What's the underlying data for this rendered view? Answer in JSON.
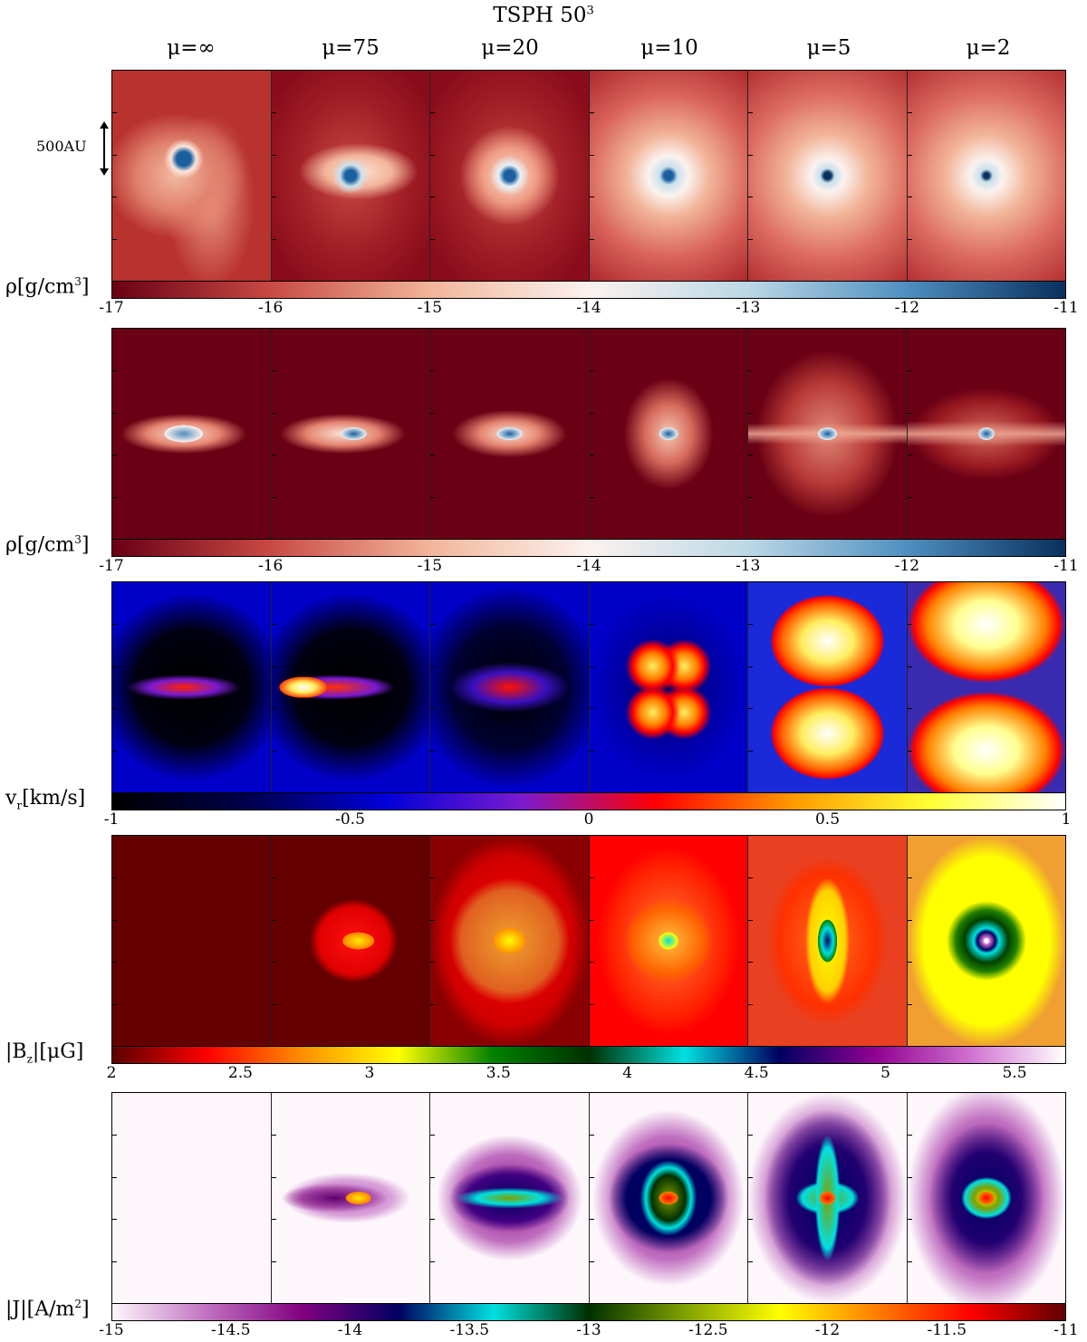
{
  "title": "TSPH 50",
  "title_sup": "3",
  "columns": [
    "μ=∞",
    "μ=75",
    "μ=20",
    "μ=10",
    "μ=5",
    "μ=2"
  ],
  "scale_label": "500AU",
  "rows": [
    {
      "label": "ρ[g/cm",
      "label_sup": "3",
      "label_end": "]",
      "ticks": [
        "-17",
        "-16",
        "-15",
        "-14",
        "-13",
        "-12",
        "-11"
      ],
      "colormap": [
        "#6a0014",
        "#c84a44",
        "#f2b59a",
        "#fbf2ee",
        "#bcd8e6",
        "#4f8fc0",
        "#08305e"
      ]
    },
    {
      "label": "ρ[g/cm",
      "label_sup": "3",
      "label_end": "]",
      "ticks": [
        "-17",
        "-16",
        "-15",
        "-14",
        "-13",
        "-12",
        "-11"
      ],
      "colormap": [
        "#6a0014",
        "#c84a44",
        "#f2b59a",
        "#fbf2ee",
        "#bcd8e6",
        "#4f8fc0",
        "#08305e"
      ]
    },
    {
      "label": "v",
      "label_sub": "r",
      "label_end": "[km/s]",
      "ticks": [
        "-1",
        "-0.5",
        "0",
        "0.5",
        "1"
      ],
      "colormap": [
        "#000000",
        "#00004d",
        "#0000d8",
        "#7a1ad0",
        "#ff0000",
        "#ff9a00",
        "#ffff33",
        "#ffffff"
      ]
    },
    {
      "label": "|B",
      "label_sub": "z",
      "label_end": "|[μG]",
      "ticks": [
        "2",
        "2.5",
        "3",
        "3.5",
        "4",
        "4.5",
        "5",
        "5.5"
      ],
      "colormap": [
        "#5a0000",
        "#ff0000",
        "#ff9000",
        "#ffff00",
        "#008000",
        "#003000",
        "#00e0e0",
        "#000060",
        "#900090",
        "#d070d0",
        "#ffffff"
      ]
    },
    {
      "label": "|J|[A/m",
      "label_sup": "2",
      "label_end": "]",
      "ticks": [
        "-15",
        "-14.5",
        "-14",
        "-13.5",
        "-13",
        "-12.5",
        "-12",
        "-11.5",
        "-11"
      ],
      "colormap": [
        "#fdf6fb",
        "#c070c0",
        "#800080",
        "#000060",
        "#00e0e0",
        "#003000",
        "#80a000",
        "#ffff00",
        "#ff8000",
        "#ff0000",
        "#600000"
      ]
    }
  ]
}
